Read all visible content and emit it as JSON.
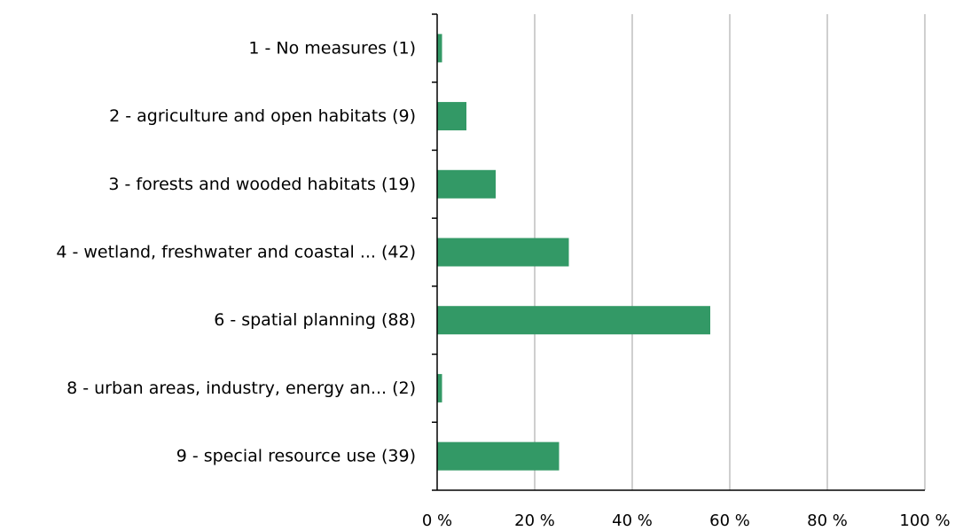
{
  "chart_data": {
    "type": "bar",
    "orientation": "horizontal",
    "categories": [
      "1 - No measures (1)",
      "2 - agriculture and open habitats  (9)",
      "3 - forests and wooded habitats  (19)",
      "4 - wetland, freshwater and coastal ... (42)",
      "6 - spatial planning (88)",
      "8 - urban areas, industry, energy an... (2)",
      "9 - special resource use (39)"
    ],
    "values": [
      1,
      6,
      12,
      27,
      56,
      1,
      25
    ],
    "xlim": [
      0,
      100
    ],
    "xticks": [
      {
        "value": 0,
        "label": "0 %"
      },
      {
        "value": 20,
        "label": "20 %"
      },
      {
        "value": 40,
        "label": "40 %"
      },
      {
        "value": 60,
        "label": "60 %"
      },
      {
        "value": 80,
        "label": "80 %"
      },
      {
        "value": 100,
        "label": "100 %"
      }
    ],
    "grid": "vertical",
    "bar_color": "#339966",
    "title": "",
    "xlabel": "",
    "ylabel": ""
  }
}
